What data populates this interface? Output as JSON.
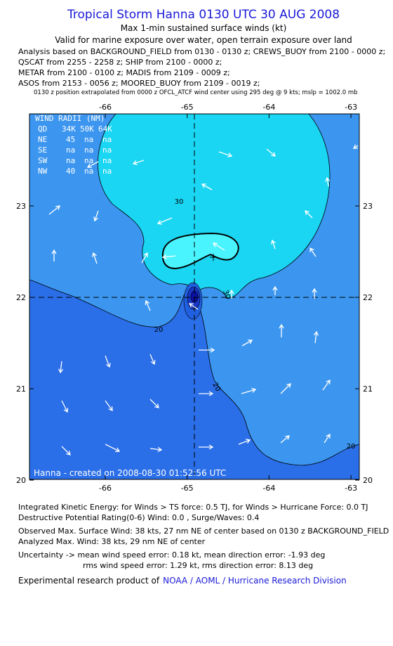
{
  "header": {
    "title": "Tropical Storm Hanna 0130 UTC 30 AUG 2008",
    "lines": [
      "Max 1-min sustained surface winds (kt)",
      "Valid for marine exposure over water, open terrain exposure over land"
    ],
    "analysis": [
      "Analysis based on  BACKGROUND_FIELD from 0130 - 0130 z;  CREWS_BUOY from 2100 - 0000 z;",
      "QSCAT from 2255 - 2258 z;  SHIP from 2100 - 0000 z;",
      "METAR from 2100 - 0100 z;  MADIS from 2109 - 0009 z;",
      "ASOS from 2153 - 0056 z;  MOORED_BUOY from 2109 - 0019 z;"
    ],
    "note": "0130 z position extrapolated from 0000 z OFCL_ATCF wind center using 295 deg @ 9 kts; mslp = 1002.0 mb"
  },
  "map": {
    "xticks": [
      -66,
      -65,
      -64,
      -63
    ],
    "yticks": [
      23,
      22,
      21,
      20
    ],
    "wind_radii": {
      "title": "WIND RADII (NM)",
      "columns": [
        "QD",
        "34K",
        "50K",
        "64K"
      ],
      "rows": [
        [
          "NE",
          "45",
          "na",
          "na"
        ],
        [
          "SE",
          "na",
          "na",
          "na"
        ],
        [
          "SW",
          "na",
          "na",
          "na"
        ],
        [
          "NW",
          "40",
          "na",
          "na"
        ]
      ]
    },
    "contour_labels": [
      30,
      30,
      20,
      20,
      20
    ],
    "credit": "Hanna - created on 2008-08-30 01:52:56 UTC"
  },
  "footer": {
    "lines": [
      "Integrated Kinetic Energy:  for Winds > TS force: 0.5 TJ,  for Winds > Hurricane Force: 0.0 TJ",
      "Destructive Potential Rating(0-6)   Wind: 0.0 , Surge/Waves: 0.4",
      "Observed Max. Surface Wind: 38 kts, 27 nm NE of center based on 0130 z BACKGROUND_FIELD",
      "Analyzed Max. Wind: 38 kts, 29 nm NE of center",
      "Uncertainty -> mean wind speed error: 0.18 kt,   mean direction error:  -1.93 deg",
      "rms wind speed error: 1.29 kt,   rms direction error: 8.13 deg"
    ],
    "product": "Experimental research product of",
    "link": "NOAA / AOML / Hurricane Research Division"
  }
}
